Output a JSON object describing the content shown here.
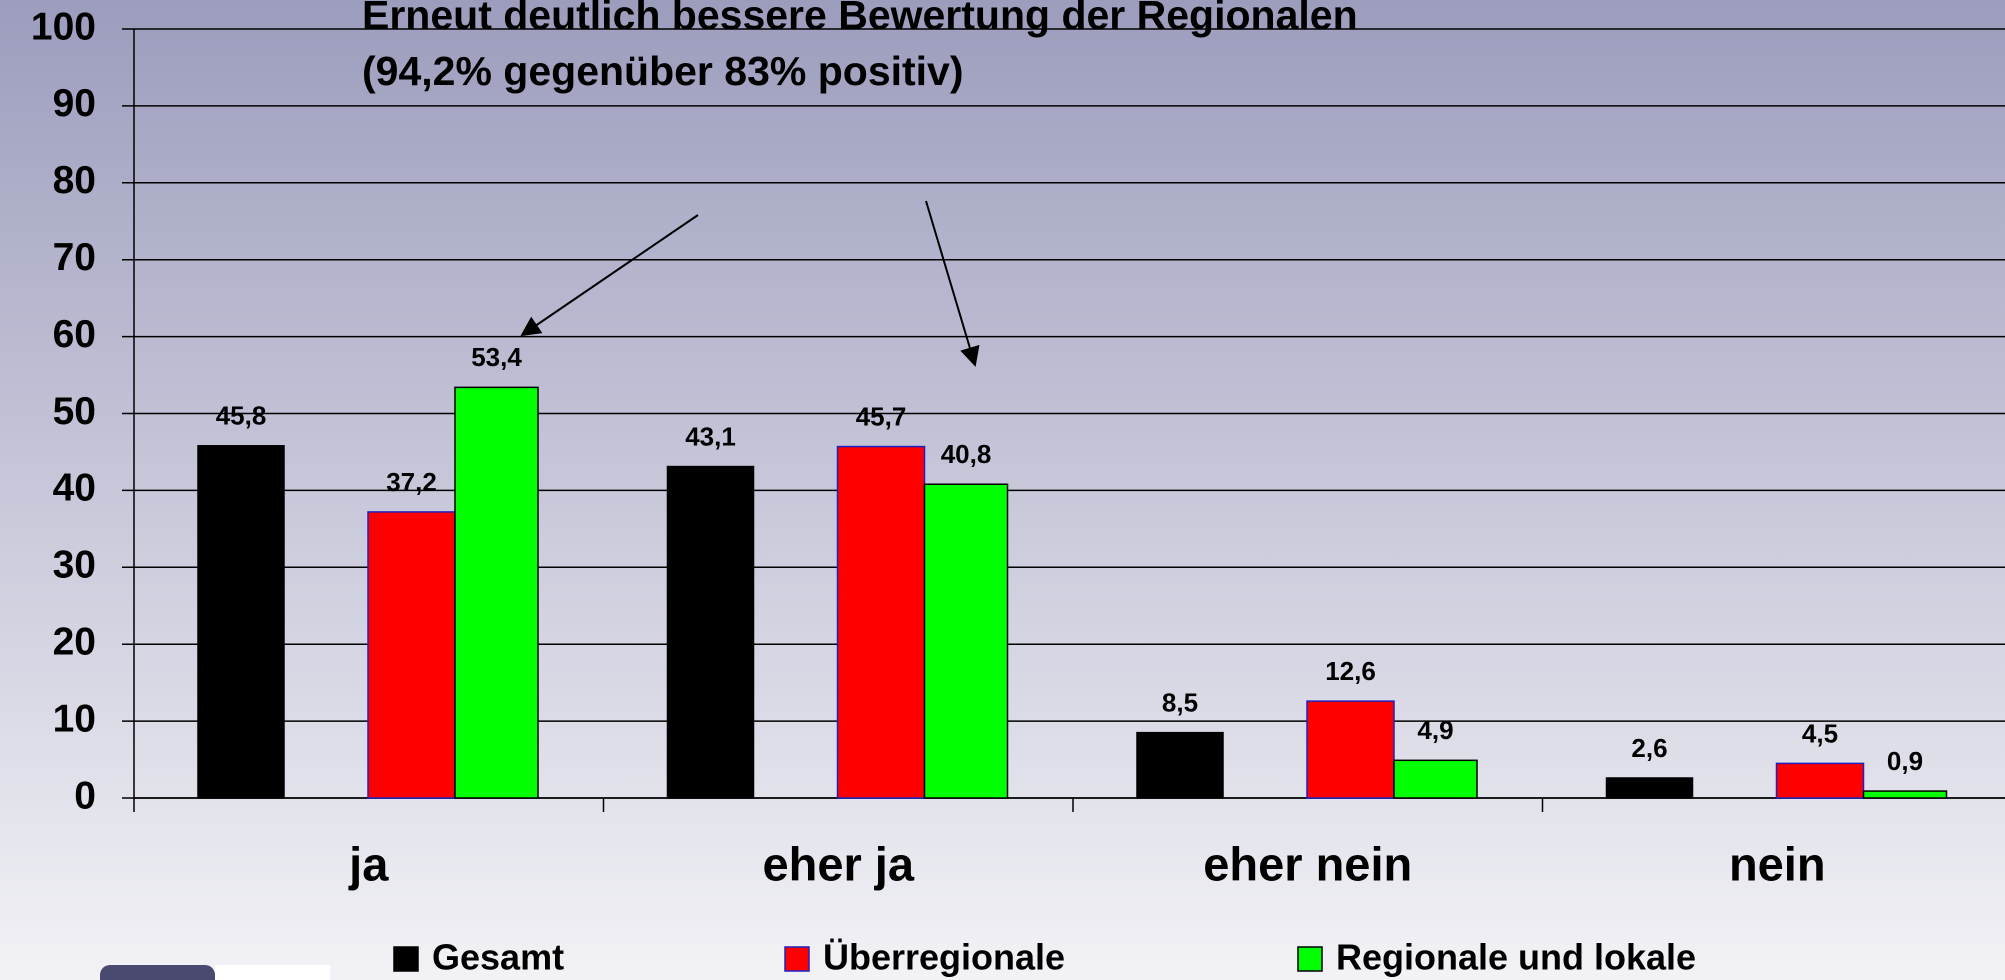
{
  "chart_data": {
    "type": "bar",
    "annotations": [
      "Erneut deutlich bessere Bewertung der Regionalen",
      "(94,2% gegenüber 83% positiv)"
    ],
    "categories": [
      "ja",
      "eher ja",
      "eher nein",
      "nein"
    ],
    "series": [
      {
        "name": "Gesamt",
        "color": "#000000",
        "values": [
          45.8,
          43.1,
          8.5,
          2.6
        ],
        "value_labels": [
          "45,8",
          "43,1",
          "8,5",
          "2,6"
        ]
      },
      {
        "name": "Überregionale",
        "color": "#ff0000",
        "values": [
          37.2,
          45.7,
          12.6,
          4.5
        ],
        "value_labels": [
          "37,2",
          "45,7",
          "12,6",
          "4,5"
        ]
      },
      {
        "name": "Regionale und lokale",
        "color": "#00ff00",
        "values": [
          53.4,
          40.8,
          4.9,
          0.9
        ],
        "value_labels": [
          "53,4",
          "40,8",
          "4,9",
          "0,9"
        ]
      }
    ],
    "ylim": [
      0,
      100
    ],
    "yticks": [
      0,
      10,
      20,
      30,
      40,
      50,
      60,
      70,
      80,
      90,
      100
    ],
    "grid": true,
    "legend": "bottom"
  }
}
